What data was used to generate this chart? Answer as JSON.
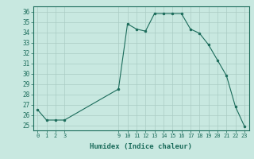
{
  "x": [
    0,
    1,
    2,
    3,
    9,
    10,
    11,
    12,
    13,
    14,
    15,
    16,
    17,
    18,
    19,
    20,
    21,
    22,
    23
  ],
  "y": [
    26.5,
    25.5,
    25.5,
    25.5,
    28.5,
    34.8,
    34.3,
    34.1,
    35.8,
    35.8,
    35.8,
    35.8,
    34.3,
    33.9,
    32.8,
    31.3,
    29.8,
    26.8,
    24.9
  ],
  "xlabel": "Humidex (Indice chaleur)",
  "ylabel_ticks": [
    25,
    26,
    27,
    28,
    29,
    30,
    31,
    32,
    33,
    34,
    35,
    36
  ],
  "xticks": [
    0,
    1,
    2,
    3,
    9,
    10,
    11,
    12,
    13,
    14,
    15,
    16,
    17,
    18,
    19,
    20,
    21,
    22,
    23
  ],
  "ylim": [
    24.5,
    36.5
  ],
  "xlim": [
    -0.5,
    23.5
  ],
  "line_color": "#1a6b5a",
  "marker_color": "#1a6b5a",
  "bg_color": "#c8e8e0",
  "grid_color": "#aaccc4"
}
